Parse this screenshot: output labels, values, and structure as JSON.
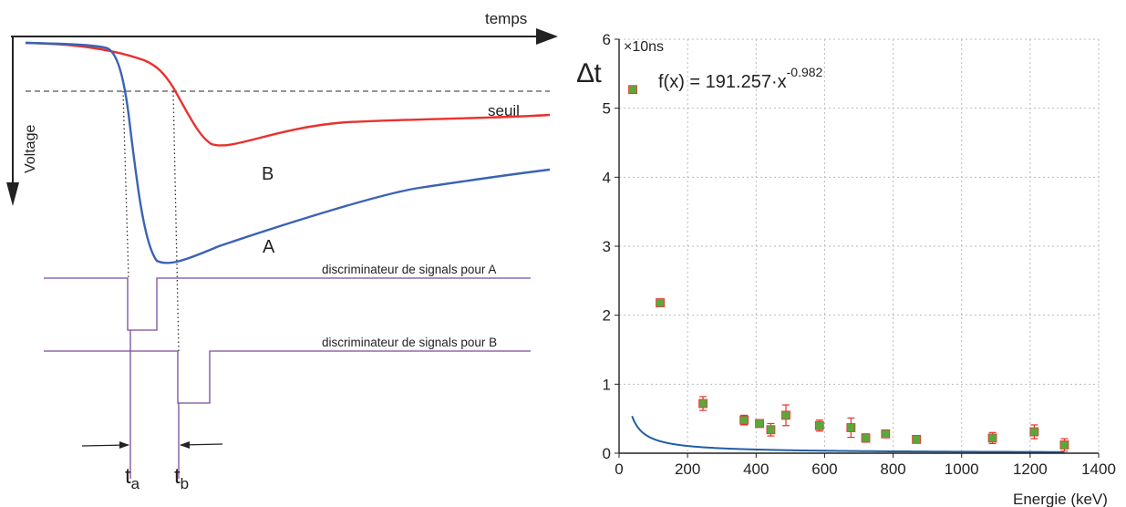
{
  "diagram": {
    "axis_time_label": "temps",
    "axis_voltage_label": "Voltage",
    "threshold_label": "seuil",
    "curve_a_label": "A",
    "curve_b_label": "B",
    "disc_a_label": "discriminateur de signals pour A",
    "disc_b_label": "discriminateur de signals pour B",
    "ta_label": "t",
    "ta_sub": "a",
    "tb_label": "t",
    "tb_sub": "b",
    "colors": {
      "curve_a": "#3a63b4",
      "curve_b": "#e8322e",
      "discriminator": "#7b4a9c",
      "threshold": "#555555"
    }
  },
  "chart_data": {
    "type": "scatter",
    "ylabel": "∆t",
    "y_unit": "×10ns",
    "xlabel": "Energie (keV)",
    "fit_label_base": "f(x) = 191.257·x",
    "fit_label_exp": "-0.982",
    "fit": {
      "a": 191.257,
      "b": -0.982,
      "x_from": 38,
      "x_to": 1300
    },
    "xlim": [
      0,
      1400
    ],
    "ylim": [
      0,
      6
    ],
    "xticks": [
      0,
      200,
      400,
      600,
      800,
      1000,
      1200,
      1400
    ],
    "yticks": [
      0,
      1,
      2,
      3,
      4,
      5,
      6
    ],
    "grid": true,
    "points": [
      {
        "x": 40,
        "y": 5.27,
        "err": 0.05
      },
      {
        "x": 120,
        "y": 2.18,
        "err": 0.04
      },
      {
        "x": 245,
        "y": 0.72,
        "err": 0.1
      },
      {
        "x": 365,
        "y": 0.48,
        "err": 0.07
      },
      {
        "x": 410,
        "y": 0.43,
        "err": 0.05
      },
      {
        "x": 443,
        "y": 0.34,
        "err": 0.09
      },
      {
        "x": 487,
        "y": 0.55,
        "err": 0.15
      },
      {
        "x": 585,
        "y": 0.4,
        "err": 0.08
      },
      {
        "x": 677,
        "y": 0.37,
        "err": 0.14
      },
      {
        "x": 720,
        "y": 0.22,
        "err": 0.06
      },
      {
        "x": 778,
        "y": 0.28,
        "err": 0.04
      },
      {
        "x": 868,
        "y": 0.2,
        "err": 0.03
      },
      {
        "x": 1090,
        "y": 0.22,
        "err": 0.08
      },
      {
        "x": 1212,
        "y": 0.31,
        "err": 0.1
      },
      {
        "x": 1300,
        "y": 0.12,
        "err": 0.09
      }
    ],
    "colors": {
      "fit": "#1f5fa4",
      "marker": "#5aa83c",
      "error": "#e8322e"
    }
  }
}
